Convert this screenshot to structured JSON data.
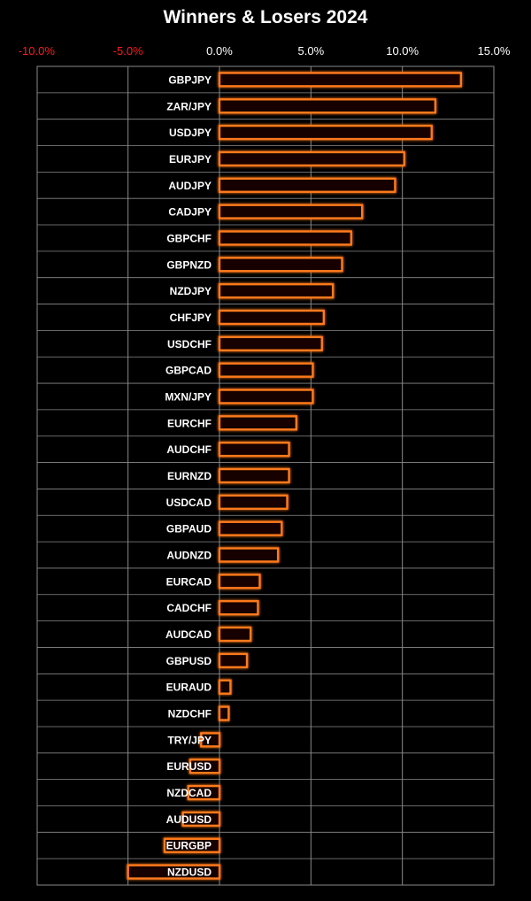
{
  "chart_data": {
    "type": "bar",
    "orientation": "horizontal",
    "title": "Winners & Losers 2024",
    "xlabel": "",
    "ylabel": "",
    "xlim": [
      -10,
      15
    ],
    "ticks": [
      {
        "value": -10,
        "label": "-10.0%"
      },
      {
        "value": -5,
        "label": "-5.0%"
      },
      {
        "value": 0,
        "label": "0.0%"
      },
      {
        "value": 5,
        "label": "5.0%"
      },
      {
        "value": 10,
        "label": "10.0%"
      },
      {
        "value": 15,
        "label": "15.0%"
      }
    ],
    "grid": true,
    "categories": [
      "GBPJPY",
      "ZAR/JPY",
      "USDJPY",
      "EURJPY",
      "AUDJPY",
      "CADJPY",
      "GBPCHF",
      "GBPNZD",
      "NZDJPY",
      "CHFJPY",
      "USDCHF",
      "GBPCAD",
      "MXN/JPY",
      "EURCHF",
      "AUDCHF",
      "EURNZD",
      "USDCAD",
      "GBPAUD",
      "AUDNZD",
      "EURCAD",
      "CADCHF",
      "AUDCAD",
      "GBPUSD",
      "EURAUD",
      "NZDCHF",
      "TRY/JPY",
      "EURUSD",
      "NZDCAD",
      "AUDUSD",
      "EURGBP",
      "NZDUSD"
    ],
    "values": [
      13.2,
      11.8,
      11.6,
      10.1,
      9.6,
      7.8,
      7.2,
      6.7,
      6.2,
      5.7,
      5.6,
      5.1,
      5.1,
      4.2,
      3.8,
      3.8,
      3.7,
      3.4,
      3.2,
      2.2,
      2.1,
      1.7,
      1.5,
      0.6,
      0.5,
      -1.0,
      -1.6,
      -1.7,
      -2.0,
      -3.0,
      -5.0
    ]
  },
  "colors": {
    "background": "#000000",
    "bar_fill": "#120400",
    "bar_border": "#ff7a1a",
    "bar_glow": "#ff4500",
    "negative_tick": "#ff1a1a",
    "positive_tick": "#ffffff",
    "grid": "#8a8a8a",
    "text": "#ffffff"
  }
}
